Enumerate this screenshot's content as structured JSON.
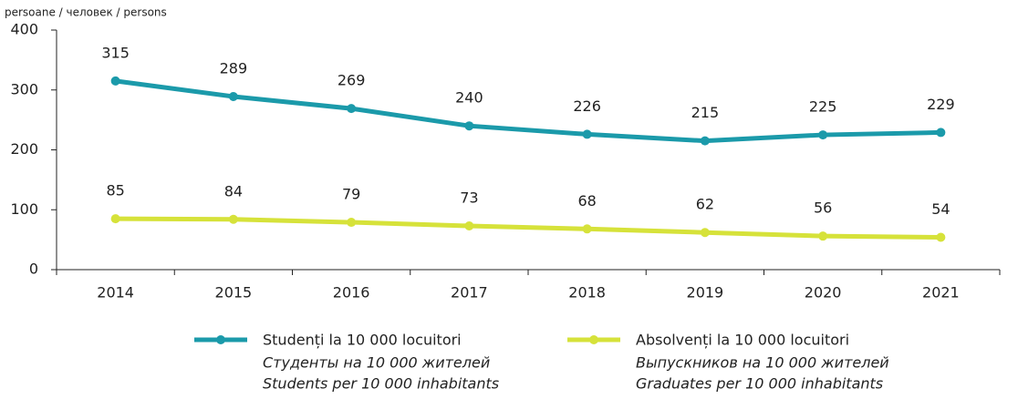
{
  "chart_data": {
    "type": "line",
    "ylabel": "persoane / человек / persons",
    "categories": [
      "2014",
      "2015",
      "2016",
      "2017",
      "2018",
      "2019",
      "2020",
      "2021"
    ],
    "series": [
      {
        "name": "Studenți la 10 000 locuitori",
        "name_translations": [
          "Студенты на 10 000 жителей",
          "Students per 10 000 inhabitants"
        ],
        "color": "#1b9aaa",
        "values": [
          315,
          289,
          269,
          240,
          226,
          215,
          225,
          229
        ]
      },
      {
        "name": "Absolvenți la 10 000 locuitori",
        "name_translations": [
          "Выпускников на 10 000 жителей",
          "Graduates per 10 000 inhabitants"
        ],
        "color": "#d6e23a",
        "values": [
          85,
          84,
          79,
          73,
          68,
          62,
          56,
          54
        ]
      }
    ],
    "ylim": [
      0,
      400
    ],
    "yticks": [
      0,
      100,
      200,
      300,
      400
    ],
    "grid": false,
    "legend": "bottom"
  }
}
